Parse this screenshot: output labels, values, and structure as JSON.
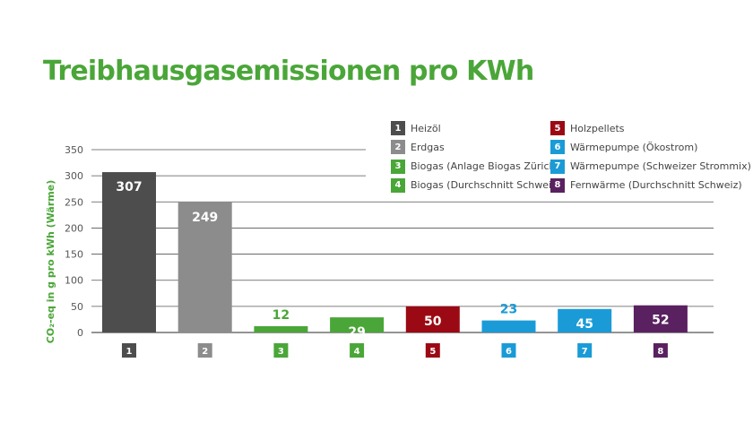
{
  "title": "Treibhausgasemissionen pro KWh",
  "colors": {
    "title": "#4aa638",
    "ylabel": "#4aa638",
    "grid": "#555555",
    "tick_text": "#555555"
  },
  "chart_data": {
    "type": "bar",
    "title": "Treibhausgasemissionen pro KWh",
    "xlabel": "",
    "ylabel": "CO₂-eq in g pro kWh (Wärme)",
    "ylim": [
      0,
      350
    ],
    "yticks": [
      0,
      50,
      100,
      150,
      200,
      250,
      300,
      350
    ],
    "grid": true,
    "legend_position": "top-right",
    "categories": [
      "1",
      "2",
      "3",
      "4",
      "5",
      "6",
      "7",
      "8"
    ],
    "values": [
      307,
      249,
      12,
      29,
      50,
      23,
      45,
      52
    ],
    "labels": [
      "Heizöl",
      "Erdgas",
      "Biogas (Anlage Biogas Zürich)",
      "Biogas (Durchschnitt Schweiz)",
      "Holzpellets",
      "Wärmepumpe (Ökostrom)",
      "Wärmepumpe (Schweizer Strommix)",
      "Fernwärme (Durchschnitt Schweiz)"
    ],
    "colors": [
      "#4d4d4d",
      "#8c8c8c",
      "#4aa638",
      "#4aa638",
      "#9b0a14",
      "#1a9bd7",
      "#1a9bd7",
      "#5a2160"
    ],
    "value_label_colors": [
      "#ffffff",
      "#ffffff",
      "#4aa638",
      "#ffffff",
      "#ffffff",
      "#1a9bd7",
      "#ffffff",
      "#ffffff"
    ]
  }
}
